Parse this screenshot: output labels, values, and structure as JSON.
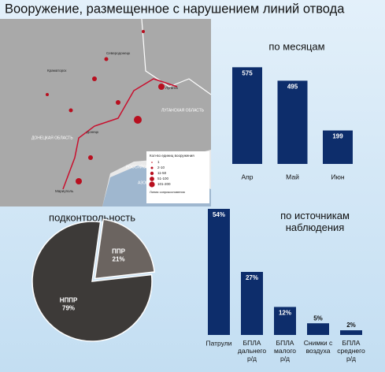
{
  "title": "Вооружение, размещенное с нарушением линий отвода",
  "map": {
    "cities": [
      "Северодонецк",
      "Краматорск",
      "Луганск",
      "Донецк",
      "Мариуполь"
    ],
    "regions": [
      "ЛУГАНСКАЯ ОБЛАСТЬ",
      "ДОНЕЦКАЯ ОБЛАСТЬ",
      "РОССИЙСКАЯ ФЕДЕРАЦИЯ",
      "АЗОВСКОЕ МОРЕ"
    ],
    "legend_title": "Кол-во единиц вооружения",
    "legend_items": [
      "1",
      "2-10",
      "11-50",
      "51-100",
      "101-200"
    ],
    "line_label": "Линия соприкосновения"
  },
  "chart_data": [
    {
      "type": "bar",
      "title": "по месяцам",
      "categories": [
        "Апр",
        "Май",
        "Июн"
      ],
      "values": [
        575,
        495,
        199
      ],
      "color": "#0d2d6b",
      "ylim": [
        0,
        600
      ]
    },
    {
      "type": "pie",
      "title": "подконтрольность",
      "categories": [
        "НППР",
        "ППР"
      ],
      "values": [
        79,
        21
      ],
      "value_labels": [
        "79%",
        "21%"
      ],
      "colors": [
        "#3d3a38",
        "#6b6460"
      ]
    },
    {
      "type": "bar",
      "title": "по источникам\nнаблюдения",
      "categories": [
        "Патрули",
        "БПЛА\nдальнего\nр/д",
        "БПЛА\nмалого\nр/д",
        "Снимки с\nвоздуха",
        "БПЛА\nсреднего\nр/д"
      ],
      "values": [
        54,
        27,
        12,
        5,
        2
      ],
      "value_labels": [
        "54%",
        "27%",
        "12%",
        "5%",
        "2%"
      ],
      "color": "#0d2d6b",
      "ylim": [
        0,
        54
      ]
    }
  ]
}
